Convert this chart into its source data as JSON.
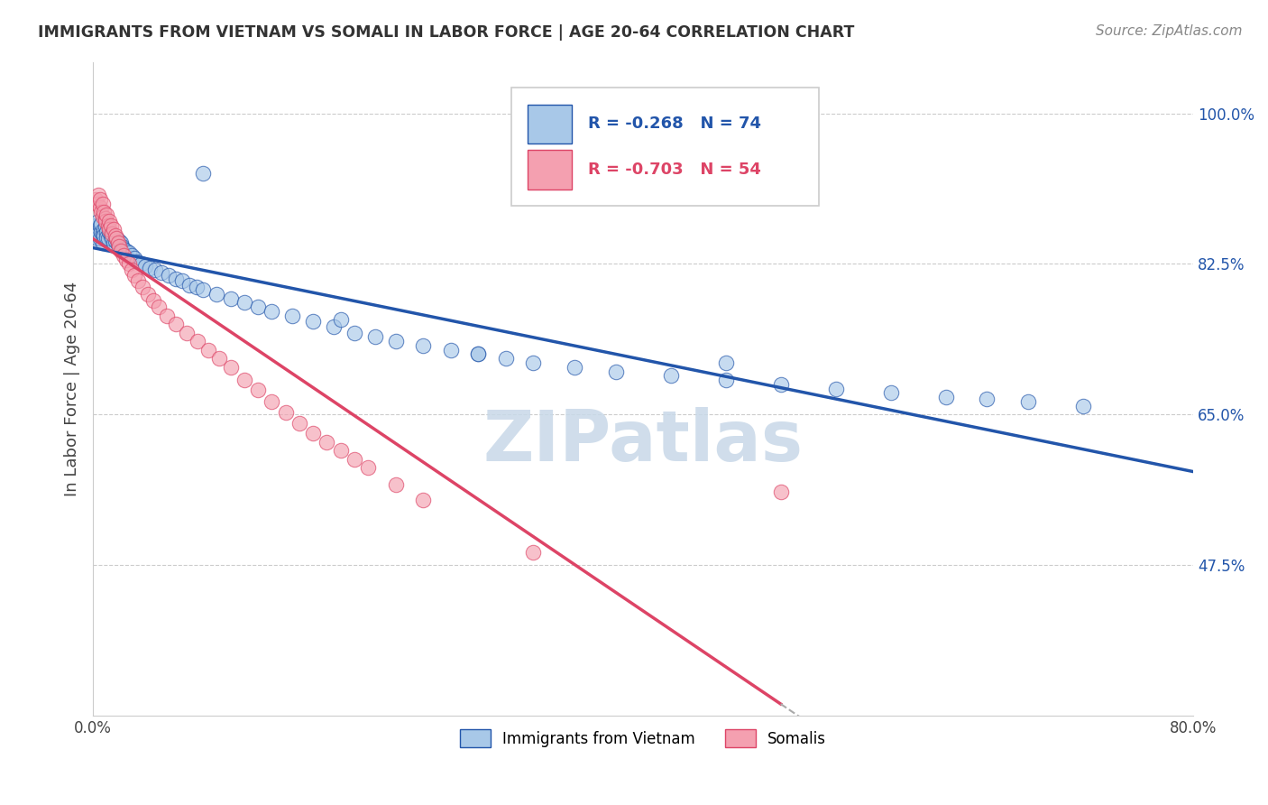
{
  "title": "IMMIGRANTS FROM VIETNAM VS SOMALI IN LABOR FORCE | AGE 20-64 CORRELATION CHART",
  "source": "Source: ZipAtlas.com",
  "ylabel": "In Labor Force | Age 20-64",
  "xlim": [
    0.0,
    0.8
  ],
  "ylim": [
    0.3,
    1.06
  ],
  "ytick_positions": [
    0.475,
    0.65,
    0.825,
    1.0
  ],
  "ytick_labels": [
    "47.5%",
    "65.0%",
    "82.5%",
    "100.0%"
  ],
  "vietnam_R": -0.268,
  "vietnam_N": 74,
  "somali_R": -0.703,
  "somali_N": 54,
  "vietnam_color": "#a8c8e8",
  "somali_color": "#f4a0b0",
  "vietnam_line_color": "#2255aa",
  "somali_line_color": "#dd4466",
  "watermark": "ZIPatlas",
  "watermark_color": "#c8d8e8",
  "legend_label_vietnam": "Immigrants from Vietnam",
  "legend_label_somali": "Somalis",
  "vietnam_x": [
    0.002,
    0.003,
    0.004,
    0.004,
    0.005,
    0.005,
    0.006,
    0.006,
    0.007,
    0.007,
    0.008,
    0.008,
    0.009,
    0.01,
    0.01,
    0.011,
    0.012,
    0.013,
    0.014,
    0.015,
    0.016,
    0.017,
    0.018,
    0.019,
    0.02,
    0.021,
    0.022,
    0.024,
    0.026,
    0.028,
    0.03,
    0.032,
    0.035,
    0.038,
    0.041,
    0.045,
    0.05,
    0.055,
    0.06,
    0.065,
    0.07,
    0.075,
    0.08,
    0.09,
    0.1,
    0.11,
    0.12,
    0.13,
    0.145,
    0.16,
    0.175,
    0.19,
    0.205,
    0.22,
    0.24,
    0.26,
    0.28,
    0.3,
    0.32,
    0.35,
    0.38,
    0.42,
    0.46,
    0.5,
    0.54,
    0.58,
    0.62,
    0.65,
    0.68,
    0.72,
    0.08,
    0.18,
    0.28,
    0.46
  ],
  "vietnam_y": [
    0.87,
    0.855,
    0.86,
    0.875,
    0.87,
    0.855,
    0.862,
    0.872,
    0.86,
    0.85,
    0.865,
    0.858,
    0.868,
    0.862,
    0.856,
    0.855,
    0.862,
    0.858,
    0.855,
    0.85,
    0.852,
    0.855,
    0.848,
    0.852,
    0.85,
    0.845,
    0.842,
    0.84,
    0.838,
    0.835,
    0.832,
    0.828,
    0.825,
    0.822,
    0.82,
    0.818,
    0.815,
    0.812,
    0.808,
    0.805,
    0.8,
    0.798,
    0.795,
    0.79,
    0.785,
    0.78,
    0.775,
    0.77,
    0.765,
    0.758,
    0.752,
    0.745,
    0.74,
    0.735,
    0.73,
    0.725,
    0.72,
    0.715,
    0.71,
    0.705,
    0.7,
    0.695,
    0.69,
    0.685,
    0.68,
    0.675,
    0.67,
    0.668,
    0.665,
    0.66,
    0.93,
    0.76,
    0.72,
    0.71
  ],
  "somali_x": [
    0.002,
    0.003,
    0.004,
    0.005,
    0.005,
    0.006,
    0.007,
    0.007,
    0.008,
    0.009,
    0.009,
    0.01,
    0.011,
    0.012,
    0.012,
    0.013,
    0.014,
    0.015,
    0.016,
    0.017,
    0.018,
    0.019,
    0.02,
    0.022,
    0.024,
    0.026,
    0.028,
    0.03,
    0.033,
    0.036,
    0.04,
    0.044,
    0.048,
    0.054,
    0.06,
    0.068,
    0.076,
    0.084,
    0.092,
    0.1,
    0.11,
    0.12,
    0.13,
    0.14,
    0.15,
    0.16,
    0.17,
    0.18,
    0.19,
    0.2,
    0.22,
    0.24,
    0.32,
    0.5
  ],
  "somali_y": [
    0.9,
    0.895,
    0.905,
    0.89,
    0.9,
    0.885,
    0.895,
    0.88,
    0.885,
    0.878,
    0.875,
    0.882,
    0.87,
    0.875,
    0.865,
    0.87,
    0.86,
    0.865,
    0.858,
    0.855,
    0.85,
    0.845,
    0.84,
    0.835,
    0.83,
    0.825,
    0.818,
    0.812,
    0.805,
    0.798,
    0.79,
    0.782,
    0.775,
    0.765,
    0.755,
    0.745,
    0.735,
    0.725,
    0.715,
    0.705,
    0.69,
    0.678,
    0.665,
    0.652,
    0.64,
    0.628,
    0.618,
    0.608,
    0.598,
    0.588,
    0.568,
    0.55,
    0.49,
    0.56
  ]
}
